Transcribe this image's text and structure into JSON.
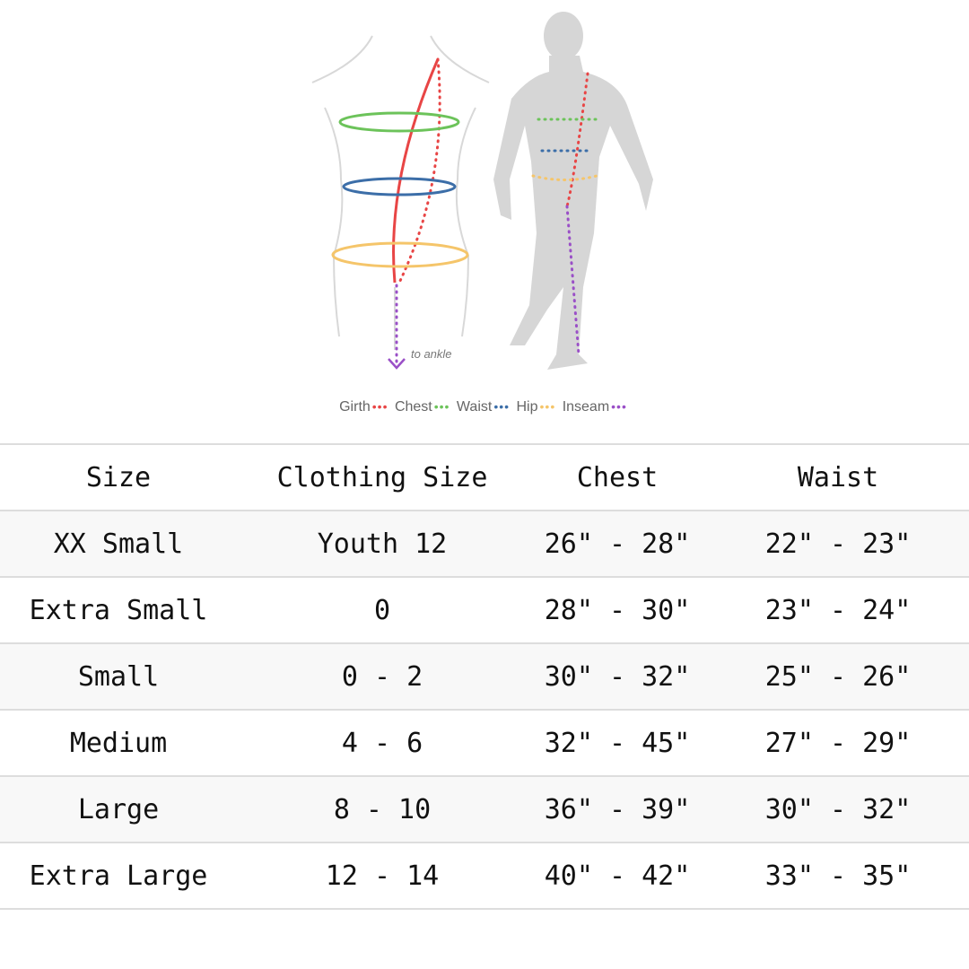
{
  "figure": {
    "annotation": "to ankle",
    "legend": [
      {
        "label": "Girth",
        "color": "#e84545"
      },
      {
        "label": "Chest",
        "color": "#6cc35a"
      },
      {
        "label": "Waist",
        "color": "#3c6ea8"
      },
      {
        "label": "Hip",
        "color": "#f5c56a"
      },
      {
        "label": "Inseam",
        "color": "#9a4fc7"
      }
    ]
  },
  "table": {
    "headers": [
      "Size",
      "Clothing Size",
      "Chest",
      "Waist"
    ],
    "rows": [
      [
        "XX Small",
        "Youth 12",
        "26\" - 28\"",
        "22\" - 23\""
      ],
      [
        "Extra Small",
        "0",
        "28\" - 30\"",
        "23\" - 24\""
      ],
      [
        "Small",
        "0 - 2",
        "30\" - 32\"",
        "25\" - 26\""
      ],
      [
        "Medium",
        "4 - 6",
        "32\" - 45\"",
        "27\" - 29\""
      ],
      [
        "Large",
        "8 - 10",
        "36\" - 39\"",
        "30\" - 32\""
      ],
      [
        "Extra Large",
        "12 - 14",
        "40\" - 42\"",
        "33\" - 35\""
      ]
    ]
  }
}
